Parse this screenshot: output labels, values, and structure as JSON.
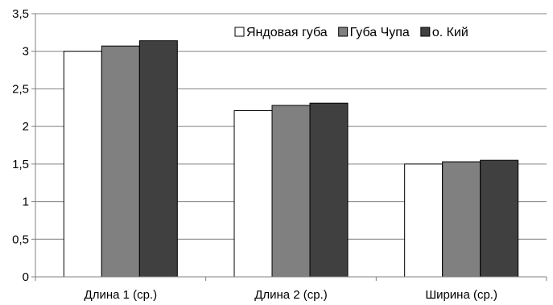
{
  "chart_data": {
    "type": "bar",
    "categories": [
      "Длина 1 (ср.)",
      "Длина 2 (ср.)",
      "Ширина (ср.)"
    ],
    "series": [
      {
        "name": "Яндовая губа",
        "values": [
          3.0,
          2.21,
          1.5
        ],
        "color": "#ffffff"
      },
      {
        "name": "Губа Чупа",
        "values": [
          3.07,
          2.28,
          1.53
        ],
        "color": "#808080"
      },
      {
        "name": "о. Кий",
        "values": [
          3.14,
          2.31,
          1.55
        ],
        "color": "#404040"
      }
    ],
    "ylim": [
      0,
      3.5
    ],
    "yticks": [
      "0",
      "0,5",
      "1",
      "1,5",
      "2",
      "2,5",
      "3",
      "3,5"
    ],
    "grid": true,
    "legend_position": "top-right",
    "axis_color": "#808080",
    "bar_border_color": "#000000"
  }
}
